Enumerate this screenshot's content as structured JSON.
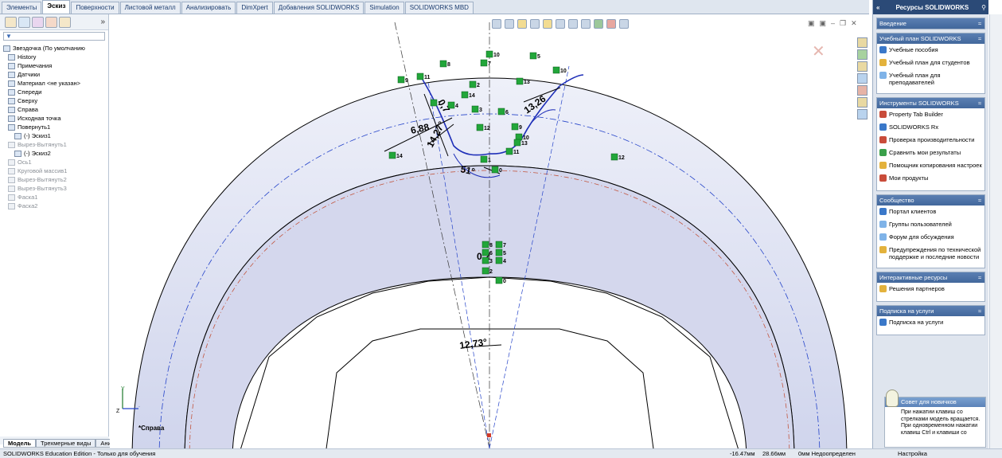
{
  "tabs": [
    "Элементы",
    "Эскиз",
    "Поверхности",
    "Листовой металл",
    "Анализировать",
    "DimXpert",
    "Добавления SOLIDWORKS",
    "Simulation",
    "SOLIDWORKS MBD"
  ],
  "active_tab": "Эскиз",
  "feature_tree": {
    "root": "Звездочка  (По умолчанию",
    "items": [
      {
        "label": "History",
        "state": "normal"
      },
      {
        "label": "Примечания",
        "state": "normal"
      },
      {
        "label": "Датчики",
        "state": "normal"
      },
      {
        "label": "Материал <не указан>",
        "state": "normal"
      },
      {
        "label": "Спереди",
        "state": "normal"
      },
      {
        "label": "Сверху",
        "state": "normal"
      },
      {
        "label": "Справа",
        "state": "normal"
      },
      {
        "label": "Исходная точка",
        "state": "normal"
      },
      {
        "label": "Повернуть1",
        "state": "normal"
      },
      {
        "label": "(-) Эскиз1",
        "state": "normal"
      },
      {
        "label": "Вырез-Вытянуть1",
        "state": "grey"
      },
      {
        "label": "(-) Эскиз2",
        "state": "normal"
      },
      {
        "label": "Ось1",
        "state": "grey"
      },
      {
        "label": "Круговой массив1",
        "state": "grey"
      },
      {
        "label": "Вырез-Вытянуть2",
        "state": "grey"
      },
      {
        "label": "Вырез-Вытянуть3",
        "state": "grey"
      },
      {
        "label": "Фаска1",
        "state": "grey"
      },
      {
        "label": "Фаска2",
        "state": "grey"
      }
    ]
  },
  "model_tabs": [
    "Модель",
    "Трехмерные виды",
    "Анимация1"
  ],
  "status": {
    "edition": "SOLIDWORKS Education Edition - Только для обучения",
    "x": "-16.47мм",
    "y": "28.66мм",
    "z": "0мм",
    "state": "Недоопределен",
    "settings": "Настройка"
  },
  "graphics": {
    "view_label": "*Справа",
    "dims": [
      "6,88",
      "14,27°",
      "0,7",
      "13,26",
      "51°",
      "12,73°",
      "0,2"
    ],
    "relation_labels": [
      "8",
      "10",
      "5",
      "7",
      "10",
      "9",
      "11",
      "2",
      "13",
      "14",
      "3",
      "1",
      "6",
      "12",
      "4",
      "9",
      "10",
      "11",
      "12",
      "13",
      "14",
      "1",
      "0",
      "8",
      "7",
      "6",
      "5",
      "3",
      "4",
      "2",
      "0"
    ]
  },
  "task_pane": {
    "nav": "«",
    "title": "Ресурсы SOLIDWORKS",
    "sections": [
      {
        "title": "Введение",
        "items": []
      },
      {
        "title": "Учебный план SOLIDWORKS",
        "items": [
          "Учебные пособия",
          "Учебный план для студентов",
          "Учебный план для преподавателей"
        ]
      },
      {
        "title": "Инструменты SOLIDWORKS",
        "items": [
          "Property Tab Builder",
          "SOLIDWORKS Rx",
          "Проверка производительности",
          "Сравнить мои результаты",
          "Помощник копирования настроек",
          "Мои продукты"
        ]
      },
      {
        "title": "Сообщество",
        "items": [
          "Портал клиентов",
          "Группы пользователей",
          "Форум для обсуждения",
          "Предупреждения по технической поддержке и последние новости"
        ]
      },
      {
        "title": "Интерактивные ресурсы",
        "items": [
          "Решения партнеров"
        ]
      },
      {
        "title": "Подписка на услуги",
        "items": [
          "Подписка на услуги"
        ]
      }
    ],
    "tip_title": "Совет для новичков",
    "tip_text": "При нажатии клавиш со стрелками модель вращается. При одновременном нажатии клавиш Ctrl и клавиши со"
  },
  "colors": {
    "part_fill": "#d6d9ee",
    "sketch_line": "#1f2fb8",
    "relation_green": "#22a63a",
    "dimension": "#000000"
  }
}
